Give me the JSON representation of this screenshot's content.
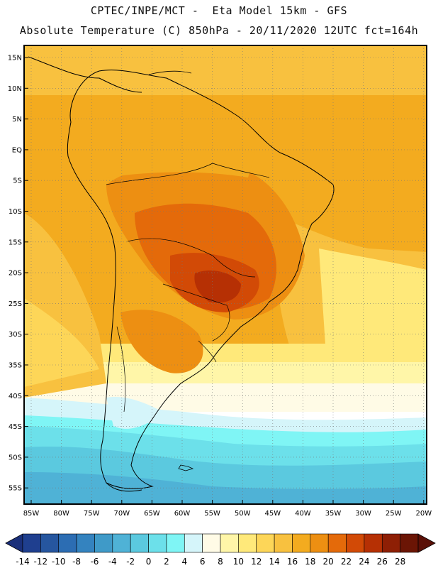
{
  "title": {
    "line1": "CPTEC/INPE/MCT -  Eta Model 15km - GFS",
    "line2": "Absolute Temperature (C) 850hPa - 20/11/2020 12UTC fct=164h"
  },
  "axes": {
    "lat_labels": [
      "15N",
      "10N",
      "5N",
      "EQ",
      "5S",
      "10S",
      "15S",
      "20S",
      "25S",
      "30S",
      "35S",
      "40S",
      "45S",
      "50S",
      "55S"
    ],
    "lon_labels": [
      "85W",
      "80W",
      "75W",
      "70W",
      "65W",
      "60W",
      "55W",
      "50W",
      "45W",
      "40W",
      "35W",
      "30W",
      "25W",
      "20W"
    ]
  },
  "colorbar": {
    "labels": [
      "-14",
      "-12",
      "-10",
      "-8",
      "-6",
      "-4",
      "-2",
      "0",
      "2",
      "4",
      "6",
      "8",
      "10",
      "12",
      "14",
      "16",
      "18",
      "20",
      "22",
      "24",
      "26",
      "28"
    ],
    "colors": [
      "#1f3f8f",
      "#26569f",
      "#2c6db3",
      "#3483bf",
      "#3f9ac8",
      "#4fb2d6",
      "#5bc9df",
      "#6ce0ea",
      "#7ff5f5",
      "#d5f5fa",
      "#fffbe6",
      "#fff6a8",
      "#ffe97a",
      "#fdd658",
      "#f8c13f",
      "#f3ab1f",
      "#ed8f12",
      "#e46a0a",
      "#d24a06",
      "#b63004",
      "#8e1f05",
      "#6b1505"
    ],
    "low_color": "#1a2f7a",
    "high_color": "#5a0f06"
  }
}
